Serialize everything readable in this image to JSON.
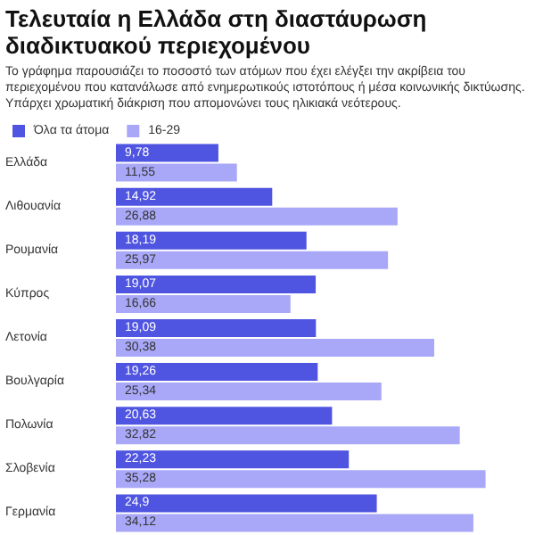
{
  "chart_data": {
    "type": "bar",
    "orientation": "horizontal",
    "title": "Τελευταία η Ελλάδα στη διαστάυρωση διαδικτυακού περιεχομένου",
    "subtitle": "Το γράφημα παρουσιάζει το ποσοστό των ατόμων που έχει ελέγξει την ακρίβεια του περιεχομένου που κατανάλωσε από ενημερωτικούς ιστοτόπους ή μέσα κοινωνικής δικτύωσης. Υπάρχει χρωματική διάκριση που απομονώνει τους ηλικιακά νεότερους.",
    "categories": [
      "Ελλάδα",
      "Λιθουανία",
      "Ρουμανία",
      "Κύπρος",
      "Λετονία",
      "Βουλγαρία",
      "Πολωνία",
      "Σλοβενία",
      "Γερμανία"
    ],
    "series": [
      {
        "name": "Όλα τα άτομα",
        "color": "#4f55e0",
        "values": [
          9.78,
          14.92,
          18.19,
          19.07,
          19.09,
          19.26,
          20.63,
          22.23,
          24.9
        ],
        "value_labels": [
          "9,78",
          "14,92",
          "18,19",
          "19,07",
          "19,09",
          "19,26",
          "20,63",
          "22,23",
          "24,9"
        ]
      },
      {
        "name": "16-29",
        "color": "#a9a8f8",
        "values": [
          11.55,
          26.88,
          25.97,
          16.66,
          30.38,
          25.34,
          32.82,
          35.28,
          34.12
        ],
        "value_labels": [
          "11,55",
          "26,88",
          "25,97",
          "16,66",
          "30,38",
          "25,34",
          "32,82",
          "35,28",
          "34,12"
        ]
      }
    ],
    "legend": "top left",
    "grid": false,
    "tick_labels": "y"
  }
}
